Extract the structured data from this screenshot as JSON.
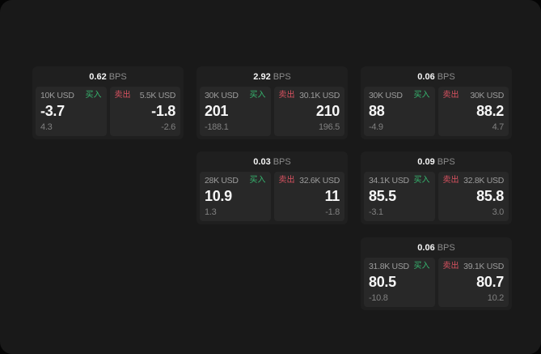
{
  "labels": {
    "buy": "买入",
    "sell": "卖出",
    "bps_unit": "BPS"
  },
  "colors": {
    "buy_green": "#36b46e",
    "sell_red": "#d85260",
    "surface": "#191919",
    "card": "#1f1f1f",
    "panel": "#282828"
  },
  "cards": [
    {
      "row": 1,
      "col": 1,
      "bps": "0.62",
      "buy": {
        "size": "10K USD",
        "price": "-3.7",
        "delta": "4.3"
      },
      "sell": {
        "size": "5.5K USD",
        "price": "-1.8",
        "delta": "-2.6"
      }
    },
    {
      "row": 1,
      "col": 2,
      "bps": "2.92",
      "buy": {
        "size": "30K USD",
        "price": "201",
        "delta": "-188.1"
      },
      "sell": {
        "size": "30.1K USD",
        "price": "210",
        "delta": "196.5"
      }
    },
    {
      "row": 1,
      "col": 3,
      "bps": "0.06",
      "buy": {
        "size": "30K USD",
        "price": "88",
        "delta": "-4.9"
      },
      "sell": {
        "size": "30K USD",
        "price": "88.2",
        "delta": "4.7"
      }
    },
    {
      "row": 2,
      "col": 2,
      "bps": "0.03",
      "buy": {
        "size": "28K USD",
        "price": "10.9",
        "delta": "1.3"
      },
      "sell": {
        "size": "32.6K USD",
        "price": "11",
        "delta": "-1.8"
      }
    },
    {
      "row": 2,
      "col": 3,
      "bps": "0.09",
      "buy": {
        "size": "34.1K USD",
        "price": "85.5",
        "delta": "-3.1"
      },
      "sell": {
        "size": "32.8K USD",
        "price": "85.8",
        "delta": "3.0"
      }
    },
    {
      "row": 3,
      "col": 3,
      "bps": "0.06",
      "buy": {
        "size": "31.8K USD",
        "price": "80.5",
        "delta": "-10.8"
      },
      "sell": {
        "size": "39.1K USD",
        "price": "80.7",
        "delta": "10.2"
      }
    }
  ]
}
